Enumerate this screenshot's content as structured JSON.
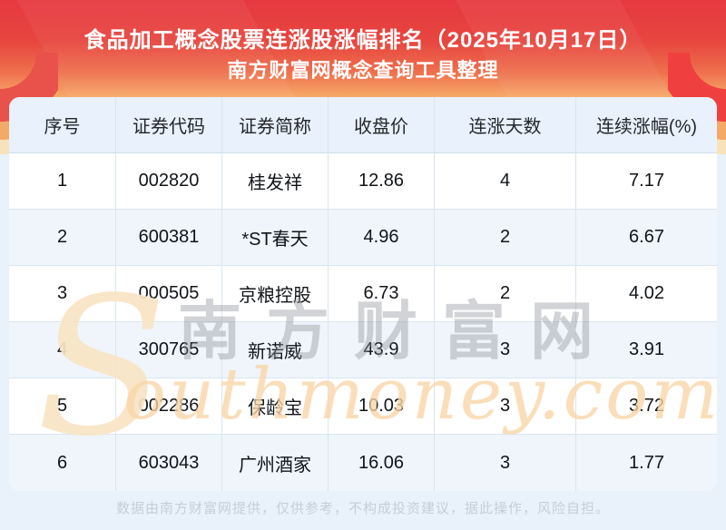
{
  "banner": {
    "title_line1": "食品加工概念股票连涨股涨幅排名（2025年10月17日）",
    "title_line2": "南方财富网概念查询工具整理"
  },
  "chart_data": {
    "type": "table",
    "title": "食品加工概念股票连涨股涨幅排名（2025年10月17日）",
    "subtitle": "南方财富网概念查询工具整理",
    "columns": [
      "序号",
      "证券代码",
      "证券简称",
      "收盘价",
      "连涨天数",
      "连续涨幅(%)"
    ],
    "rows": [
      [
        "1",
        "002820",
        "桂发祥",
        "12.86",
        "4",
        "7.17"
      ],
      [
        "2",
        "600381",
        "*ST春天",
        "4.96",
        "2",
        "6.67"
      ],
      [
        "3",
        "000505",
        "京粮控股",
        "6.73",
        "2",
        "4.02"
      ],
      [
        "4",
        "300765",
        "新诺威",
        "43.9",
        "3",
        "3.91"
      ],
      [
        "5",
        "002286",
        "保龄宝",
        "10.03",
        "3",
        "3.72"
      ],
      [
        "6",
        "603043",
        "广州酒家",
        "16.06",
        "3",
        "1.77"
      ]
    ]
  },
  "watermark": {
    "s_glyph": "S",
    "en": "outhmoney.com",
    "cn": "南方财富网"
  },
  "footer": {
    "disclaimer": "数据由南方财富网提供，仅供参考，不构成投资建议，据此操作，风险自担。"
  },
  "colors": {
    "banner_red_top": "#e63940",
    "banner_orange_bottom": "#f7aa69",
    "ribbon_red": "#e9514b",
    "ribbon_orange": "#f4a967",
    "ribbon_cream": "#f8e2bb",
    "header_row_bg": "#e8f1fc",
    "even_row_bg": "#eff5fb",
    "row_border": "#d9e5f1",
    "page_bg": "#e9f2fa",
    "title_text": "#ffffff",
    "cell_text": "#111418",
    "footer_text": "#c3ced8"
  }
}
